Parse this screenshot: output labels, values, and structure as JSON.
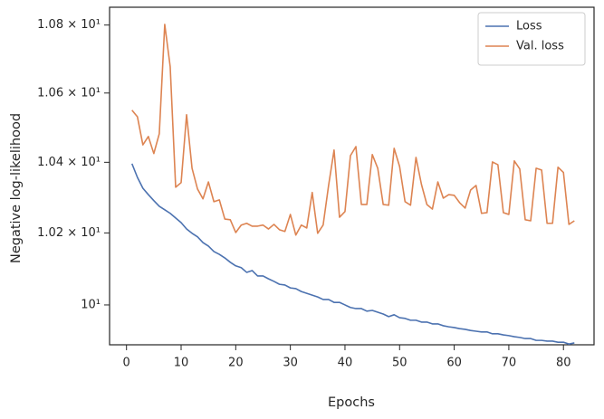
{
  "chart_data": {
    "type": "line",
    "xlabel": "Epochs",
    "ylabel": "Negative log-likelihood",
    "x": [
      1,
      2,
      3,
      4,
      5,
      6,
      7,
      8,
      9,
      10,
      11,
      12,
      13,
      14,
      15,
      16,
      17,
      18,
      19,
      20,
      21,
      22,
      23,
      24,
      25,
      26,
      27,
      28,
      29,
      30,
      31,
      32,
      33,
      34,
      35,
      36,
      37,
      38,
      39,
      40,
      41,
      42,
      43,
      44,
      45,
      46,
      47,
      48,
      49,
      50,
      51,
      52,
      53,
      54,
      55,
      56,
      57,
      58,
      59,
      60,
      61,
      62,
      63,
      64,
      65,
      66,
      67,
      68,
      69,
      70,
      71,
      72,
      73,
      74,
      75,
      76,
      77,
      78,
      79,
      80,
      81,
      82
    ],
    "series": [
      {
        "name": "Loss",
        "color": "#4c72b0",
        "values": [
          10.396,
          10.357,
          10.326,
          10.308,
          10.291,
          10.275,
          10.265,
          10.255,
          10.242,
          10.229,
          10.211,
          10.199,
          10.189,
          10.173,
          10.163,
          10.148,
          10.14,
          10.13,
          10.118,
          10.108,
          10.103,
          10.09,
          10.095,
          10.08,
          10.08,
          10.072,
          10.065,
          10.057,
          10.055,
          10.047,
          10.045,
          10.037,
          10.032,
          10.027,
          10.022,
          10.015,
          10.015,
          10.007,
          10.007,
          10.0,
          9.993,
          9.99,
          9.99,
          9.983,
          9.985,
          9.98,
          9.975,
          9.968,
          9.973,
          9.965,
          9.963,
          9.958,
          9.958,
          9.953,
          9.953,
          9.948,
          9.948,
          9.943,
          9.94,
          9.938,
          9.935,
          9.933,
          9.93,
          9.928,
          9.926,
          9.926,
          9.921,
          9.921,
          9.918,
          9.916,
          9.913,
          9.911,
          9.908,
          9.908,
          9.903,
          9.903,
          9.901,
          9.901,
          9.898,
          9.898,
          9.893,
          9.896
        ]
      },
      {
        "name": "Val. loss",
        "color": "#dd8452",
        "values": [
          10.55,
          10.531,
          10.45,
          10.474,
          10.425,
          10.482,
          10.802,
          10.677,
          10.329,
          10.342,
          10.537,
          10.383,
          10.324,
          10.296,
          10.344,
          10.288,
          10.293,
          10.239,
          10.237,
          10.201,
          10.222,
          10.227,
          10.219,
          10.219,
          10.222,
          10.211,
          10.224,
          10.209,
          10.204,
          10.252,
          10.194,
          10.222,
          10.214,
          10.314,
          10.199,
          10.222,
          10.334,
          10.435,
          10.244,
          10.26,
          10.419,
          10.445,
          10.28,
          10.28,
          10.422,
          10.383,
          10.28,
          10.278,
          10.44,
          10.388,
          10.288,
          10.278,
          10.414,
          10.337,
          10.28,
          10.267,
          10.344,
          10.298,
          10.308,
          10.306,
          10.285,
          10.27,
          10.321,
          10.334,
          10.255,
          10.257,
          10.401,
          10.393,
          10.257,
          10.252,
          10.404,
          10.381,
          10.237,
          10.234,
          10.383,
          10.378,
          10.227,
          10.227,
          10.386,
          10.371,
          10.224,
          10.234
        ]
      }
    ],
    "xlim": [
      -3.1,
      85.6
    ],
    "xticks": [
      0,
      10,
      20,
      30,
      40,
      50,
      60,
      70,
      80
    ],
    "ylim": [
      9.891,
      10.853
    ],
    "log_y": true,
    "yticks": [
      {
        "value": 10,
        "label": "10¹"
      },
      {
        "value": 10.2,
        "label": "1.02 × 10¹"
      },
      {
        "value": 10.4,
        "label": "1.04 × 10¹"
      },
      {
        "value": 10.6,
        "label": "1.06 × 10¹"
      },
      {
        "value": 10.8,
        "label": "1.08 × 10¹"
      }
    ],
    "legend": "upper right"
  }
}
